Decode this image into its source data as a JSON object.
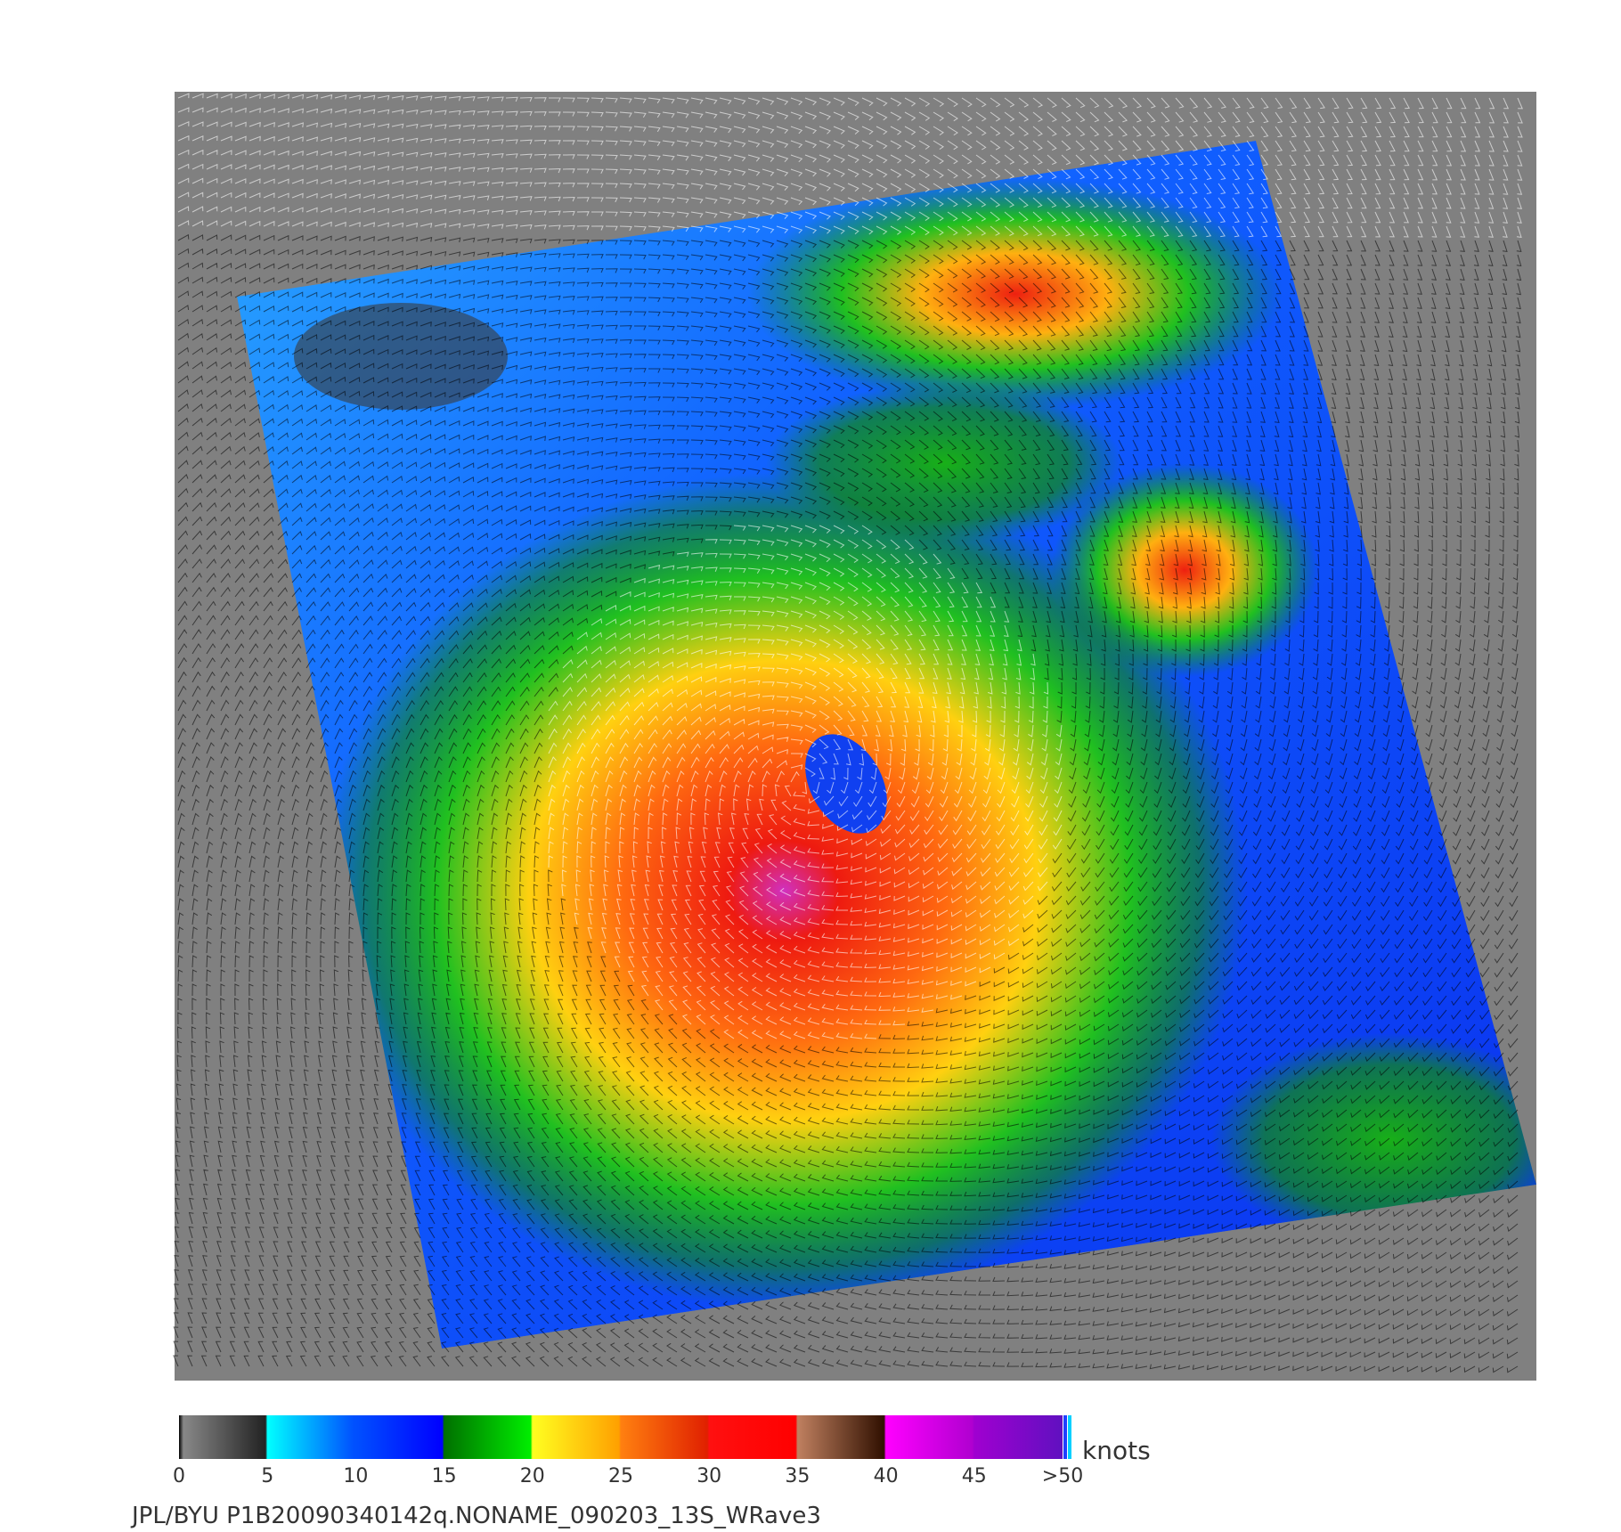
{
  "colorbar": {
    "ticks": [
      0,
      5,
      10,
      15,
      20,
      25,
      30,
      35,
      40,
      45,
      {
        "value": 50,
        "label": ">50"
      }
    ],
    "unit": "knots"
  },
  "footer": "JPL/BYU  P1B20090340142q.NONAME_090203_13S_WRave3"
}
